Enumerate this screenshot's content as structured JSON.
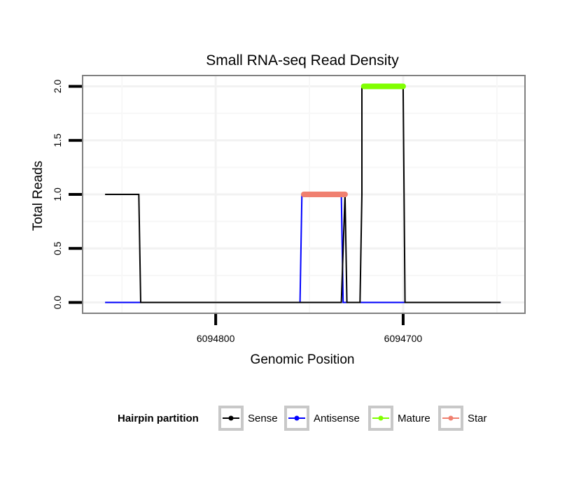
{
  "chart_data": {
    "type": "line",
    "title": "Small RNA-seq Read Density",
    "xlabel": "Genomic Position",
    "ylabel": "Total Reads",
    "xlim": [
      6094871,
      6094635
    ],
    "ylim": [
      -0.1,
      2.1
    ],
    "x_ticks": [
      6094800,
      6094700
    ],
    "x_tick_labels": [
      "6094800",
      "6094700"
    ],
    "y_ticks": [
      0,
      0.5,
      1,
      1.5,
      2
    ],
    "y_tick_labels": [
      "0.0",
      "0.5",
      "1.0",
      "1.5",
      "2.0"
    ],
    "grid": true,
    "legend": {
      "title": "Hairpin partition",
      "placement": "bottom",
      "entries": [
        "Sense",
        "Antisense",
        "Mature",
        "Star"
      ]
    },
    "series": [
      {
        "name": "Sense",
        "color": "#000000",
        "style": "line",
        "x": [
          6094859,
          6094841,
          6094840,
          6094754,
          6094733,
          6094731,
          6094730,
          6094726,
          6094723,
          6094722,
          6094722,
          6094700,
          6094699,
          6094648
        ],
        "y": [
          1,
          1,
          0,
          0,
          0,
          1,
          0,
          0,
          0,
          1,
          2,
          2,
          0,
          0
        ]
      },
      {
        "name": "Antisense",
        "color": "#0000ff",
        "style": "line",
        "x": [
          6094859,
          6094840,
          6094755,
          6094754,
          6094733,
          6094732,
          6094648
        ],
        "y": [
          0,
          0,
          0,
          1,
          1,
          0,
          0
        ]
      },
      {
        "name": "Mature",
        "color": "#80ff00",
        "style": "segment",
        "x": [
          6094721,
          6094700
        ],
        "y": [
          2,
          2
        ]
      },
      {
        "name": "Star",
        "color": "#f08070",
        "style": "segment",
        "x": [
          6094753,
          6094731
        ],
        "y": [
          1,
          1
        ]
      }
    ]
  }
}
